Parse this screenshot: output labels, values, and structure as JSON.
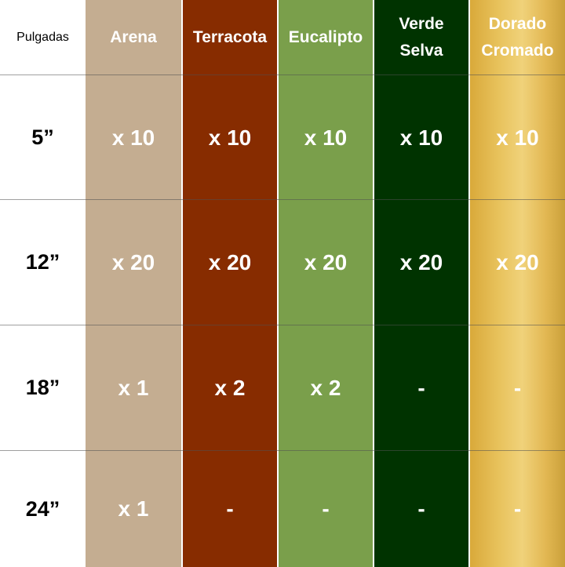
{
  "header": {
    "corner": "Pulgadas",
    "colors": [
      {
        "name_line1": "Arena",
        "name_line2": "",
        "hex": "#c4ad91"
      },
      {
        "name_line1": "Terracota",
        "name_line2": "",
        "hex": "#872c00"
      },
      {
        "name_line1": "Eucalipto",
        "name_line2": "",
        "hex": "#7a9f4b"
      },
      {
        "name_line1": "Verde",
        "name_line2": "Selva",
        "hex": "#003300"
      },
      {
        "name_line1": "Dorado",
        "name_line2": "Cromado",
        "hex": "#e2b752"
      }
    ]
  },
  "rows": [
    {
      "size": "5”",
      "values": [
        "x 10",
        "x 10",
        "x 10",
        "x 10",
        "x 10"
      ]
    },
    {
      "size": "12”",
      "values": [
        "x 20",
        "x 20",
        "x 20",
        "x 20",
        "x 20"
      ]
    },
    {
      "size": "18”",
      "values": [
        "x 1",
        "x 2",
        "x 2",
        "-",
        "-"
      ]
    },
    {
      "size": "24”",
      "values": [
        "x 1",
        "-",
        "-",
        "-",
        "-"
      ]
    }
  ]
}
